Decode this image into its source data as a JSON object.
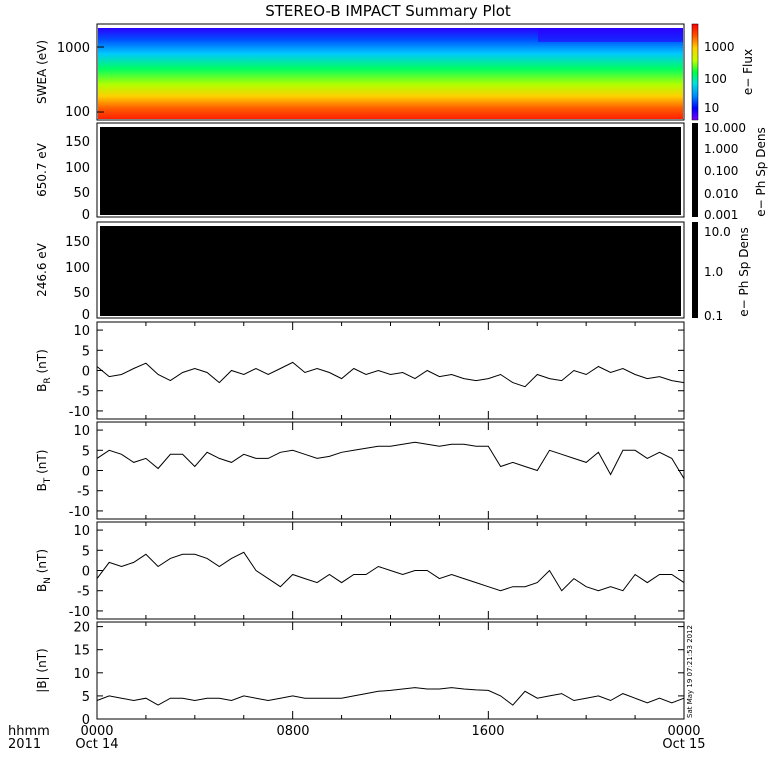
{
  "title": "STEREO-B IMPACT Summary Plot",
  "stamp": "Sat May 19 07:21:53 2012",
  "x_axis": {
    "ticks": [
      {
        "hhmm": "0000",
        "date": "Oct 14"
      },
      {
        "hhmm": "0800",
        "date": ""
      },
      {
        "hhmm": "1600",
        "date": ""
      },
      {
        "hhmm": "0000",
        "date": "Oct 15"
      }
    ],
    "label_top": "hhmm",
    "label_bottom": "2011"
  },
  "colors": {
    "line": "#000000",
    "empty_panel": "#000000",
    "colorbar": [
      "#7f00ff",
      "#0000ff",
      "#0088ff",
      "#00e0e0",
      "#00ff40",
      "#c0ff00",
      "#ffd000",
      "#ff5000",
      "#ff0000"
    ]
  },
  "chart_data": [
    {
      "type": "heatmap",
      "name": "swea",
      "ylabel": "SWEA (eV)",
      "scale": "log",
      "yticks": [
        "1000",
        "100"
      ],
      "cbar_label": "e− Flux",
      "cbar_ticks": [
        "1000",
        "100",
        "10"
      ]
    },
    {
      "type": "heatmap",
      "name": "pad650",
      "ylabel": "650.7 eV",
      "yticks": [
        "150",
        "100",
        "50",
        "0"
      ],
      "cbar_label": "e− Ph Sp Dens",
      "cbar_ticks": [
        "10.000",
        "1.000",
        "0.100",
        "0.010",
        "0.001"
      ]
    },
    {
      "type": "heatmap",
      "name": "pad246",
      "ylabel": "246.6 eV",
      "yticks": [
        "150",
        "100",
        "50",
        "0"
      ],
      "cbar_label": "e− Ph Sp Dens",
      "cbar_ticks": [
        "10.0",
        "1.0",
        "0.1"
      ]
    },
    {
      "type": "line",
      "name": "br",
      "ylabel": "B",
      "ylabel_sub": "R",
      "ylabel_unit": " (nT)",
      "ylim": [
        -12,
        12
      ],
      "yticks": [
        "10",
        "5",
        "0",
        "-5",
        "-10"
      ],
      "x": [
        0,
        0.5,
        1,
        1.5,
        2,
        2.5,
        3,
        3.5,
        4,
        4.5,
        5,
        5.5,
        6,
        6.5,
        7,
        7.5,
        8,
        8.5,
        9,
        9.5,
        10,
        10.5,
        11,
        11.5,
        12,
        12.5,
        13,
        13.5,
        14,
        14.5,
        15,
        15.5,
        16,
        16.5,
        17,
        17.5,
        18,
        18.5,
        19,
        19.5,
        20,
        20.5,
        21,
        21.5,
        22,
        22.5,
        23,
        23.5,
        24
      ],
      "values": [
        1,
        -1.5,
        -1,
        0.5,
        1.8,
        -1,
        -2.5,
        -0.5,
        0.5,
        -0.5,
        -3,
        0,
        -1,
        0.5,
        -1,
        0.5,
        2,
        -0.5,
        0.5,
        -0.5,
        -2,
        0.5,
        -1,
        0,
        -1,
        -0.5,
        -2,
        0,
        -1.5,
        -1,
        -2,
        -2.5,
        -2,
        -1,
        -3,
        -4,
        -1,
        -2,
        -2.5,
        0,
        -1,
        1,
        -0.5,
        0.5,
        -1,
        -2,
        -1.5,
        -2.5,
        -3
      ]
    },
    {
      "type": "line",
      "name": "bt",
      "ylabel": "B",
      "ylabel_sub": "T",
      "ylabel_unit": " (nT)",
      "ylim": [
        -12,
        12
      ],
      "yticks": [
        "10",
        "5",
        "0",
        "-5",
        "-10"
      ],
      "x": [
        0,
        0.5,
        1,
        1.5,
        2,
        2.5,
        3,
        3.5,
        4,
        4.5,
        5,
        5.5,
        6,
        6.5,
        7,
        7.5,
        8,
        8.5,
        9,
        9.5,
        10,
        10.5,
        11,
        11.5,
        12,
        12.5,
        13,
        13.5,
        14,
        14.5,
        15,
        15.5,
        16,
        16.5,
        17,
        17.5,
        18,
        18.5,
        19,
        19.5,
        20,
        20.5,
        21,
        21.5,
        22,
        22.5,
        23,
        23.5,
        24
      ],
      "values": [
        3,
        5,
        4,
        2,
        3,
        0.5,
        4,
        4,
        1,
        4.5,
        3,
        2,
        4,
        3,
        3,
        4.5,
        5,
        4,
        3,
        3.5,
        4.5,
        5,
        5.5,
        6,
        6,
        6.5,
        7,
        6.5,
        6,
        6.5,
        6.5,
        6,
        6,
        1,
        2,
        1,
        0,
        5,
        4,
        3,
        2,
        4.5,
        -1,
        5,
        5,
        3,
        4.5,
        3,
        -2
      ]
    },
    {
      "type": "line",
      "name": "bn",
      "ylabel": "B",
      "ylabel_sub": "N",
      "ylabel_unit": " (nT)",
      "ylim": [
        -12,
        12
      ],
      "yticks": [
        "10",
        "5",
        "0",
        "-5",
        "-10"
      ],
      "x": [
        0,
        0.5,
        1,
        1.5,
        2,
        2.5,
        3,
        3.5,
        4,
        4.5,
        5,
        5.5,
        6,
        6.5,
        7,
        7.5,
        8,
        8.5,
        9,
        9.5,
        10,
        10.5,
        11,
        11.5,
        12,
        12.5,
        13,
        13.5,
        14,
        14.5,
        15,
        15.5,
        16,
        16.5,
        17,
        17.5,
        18,
        18.5,
        19,
        19.5,
        20,
        20.5,
        21,
        21.5,
        22,
        22.5,
        23,
        23.5,
        24
      ],
      "values": [
        -2,
        2,
        1,
        2,
        4,
        1,
        3,
        4,
        4,
        3,
        1,
        3,
        4.5,
        0,
        -2,
        -4,
        -1,
        -2,
        -3,
        -1,
        -3,
        -1,
        -1,
        1,
        0,
        -1,
        0,
        0,
        -2,
        -1,
        -2,
        -3,
        -4,
        -5,
        -4,
        -4,
        -3,
        0,
        -5,
        -2,
        -4,
        -5,
        -4,
        -5,
        -1,
        -3,
        -1,
        -1,
        -3
      ]
    },
    {
      "type": "line",
      "name": "bmag",
      "ylabel": "|B| (nT)",
      "ylim": [
        0,
        21
      ],
      "yticks": [
        "20",
        "15",
        "10",
        "5",
        "0"
      ],
      "x": [
        0,
        0.5,
        1,
        1.5,
        2,
        2.5,
        3,
        3.5,
        4,
        4.5,
        5,
        5.5,
        6,
        6.5,
        7,
        7.5,
        8,
        8.5,
        9,
        9.5,
        10,
        10.5,
        11,
        11.5,
        12,
        12.5,
        13,
        13.5,
        14,
        14.5,
        15,
        15.5,
        16,
        16.5,
        17,
        17.5,
        18,
        18.5,
        19,
        19.5,
        20,
        20.5,
        21,
        21.5,
        22,
        22.5,
        23,
        23.5,
        24
      ],
      "values": [
        4,
        5,
        4.5,
        4,
        4.5,
        3,
        4.5,
        4.5,
        4,
        4.5,
        4.5,
        4,
        5,
        4.5,
        4,
        4.5,
        5,
        4.5,
        4.5,
        4.5,
        4.5,
        5,
        5.5,
        6,
        6.2,
        6.5,
        6.8,
        6.5,
        6.5,
        6.8,
        6.5,
        6.3,
        6.2,
        5,
        3,
        6,
        4.5,
        5,
        5.5,
        4,
        4.5,
        5,
        4,
        5.5,
        4.5,
        3.5,
        4.5,
        3.5,
        4.5
      ]
    }
  ]
}
